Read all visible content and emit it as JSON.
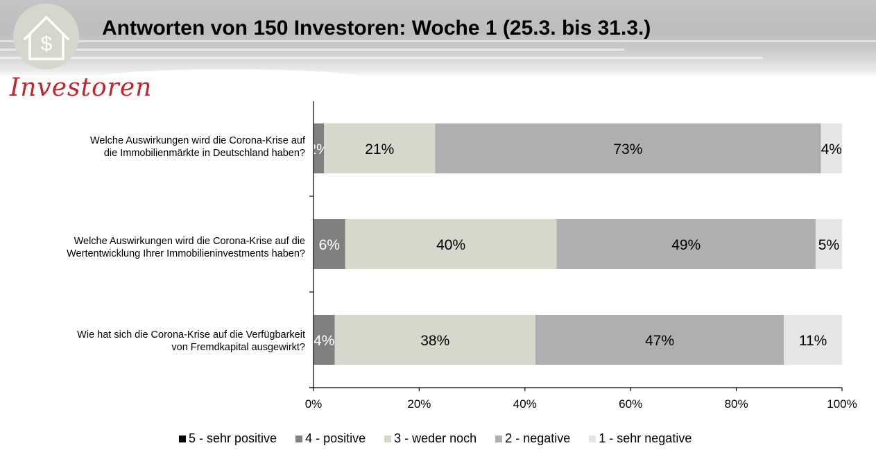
{
  "header": {
    "title": "Antworten von 150 Investoren: Woche 1 (25.3. bis 31.3.)",
    "brand_label": "Investoren",
    "logo_icon": "house-dollar-icon"
  },
  "colors": {
    "brand_red": "#c4242c",
    "logo_bg": "#d6d6cc"
  },
  "chart_data": {
    "type": "bar",
    "orientation": "horizontal",
    "stacked": true,
    "normalized_percent": true,
    "title": "Antworten von 150 Investoren: Woche 1 (25.3. bis 31.3.)",
    "xlabel": "",
    "ylabel": "",
    "xlim": [
      0,
      100
    ],
    "x_ticks": [
      "0%",
      "20%",
      "40%",
      "60%",
      "80%",
      "100%"
    ],
    "x_tick_values": [
      0,
      20,
      40,
      60,
      80,
      100
    ],
    "grid": false,
    "legend_position": "bottom",
    "categories": [
      "Welche Auswirkungen wird die Corona-Krise auf die Immobilienmärkte in Deutschland haben?",
      "Welche Auswirkungen wird die Corona-Krise auf die Wertentwicklung Ihrer Immobilieninvestments haben?",
      "Wie hat sich die Corona-Krise auf die Verfügbarkeit von Fremdkapital ausgewirkt?"
    ],
    "category_lines": [
      [
        "Welche Auswirkungen wird die Corona-Krise auf",
        "die Immobilienmärkte in Deutschland haben?"
      ],
      [
        "Welche Auswirkungen wird die Corona-Krise auf die",
        "Wertentwicklung Ihrer Immobilieninvestments haben?"
      ],
      [
        "Wie hat sich die Corona-Krise auf die Verfügbarkeit",
        "von Fremdkapital ausgewirkt?"
      ]
    ],
    "series": [
      {
        "name": "5 - sehr positive",
        "color": "#000000",
        "label_color": "#ffffff",
        "values": [
          0,
          0,
          0
        ]
      },
      {
        "name": "4 - positive",
        "color": "#808080",
        "label_color": "#ffffff",
        "values": [
          2,
          6,
          4
        ]
      },
      {
        "name": "3 - weder noch",
        "color": "#d7d7cb",
        "label_color": "#000000",
        "values": [
          21,
          40,
          38
        ]
      },
      {
        "name": "2 - negative",
        "color": "#afafb1",
        "label_color": "#000000",
        "values": [
          73,
          49,
          47
        ]
      },
      {
        "name": "1 - sehr negative",
        "color": "#e6e6e6",
        "label_color": "#000000",
        "values": [
          4,
          5,
          11
        ]
      }
    ]
  }
}
